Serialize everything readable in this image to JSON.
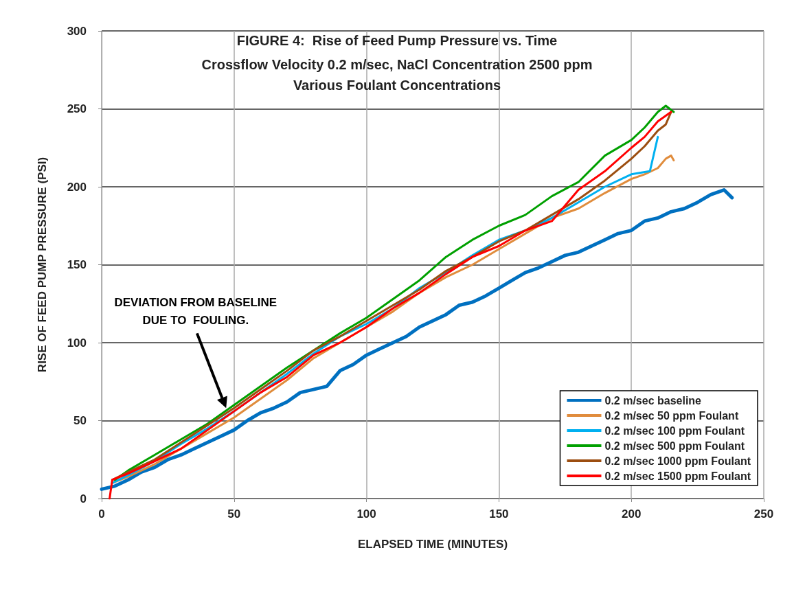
{
  "chart_data": {
    "type": "line",
    "title": "FIGURE 4:  Rise of Feed Pump Pressure vs. Time",
    "subtitle": "Crossflow Velocity 0.2 m/sec, NaCl Concentration 2500 ppm\nVarious Foulant Concentrations",
    "xlabel": "ELAPSED TIME (MINUTES)",
    "ylabel": "RISE OF FEED PUMP PRESSURE (PSI)",
    "xlim": [
      0,
      250
    ],
    "xticks": [
      0,
      50,
      100,
      150,
      200,
      250
    ],
    "ylim": [
      0,
      300
    ],
    "yticks": [
      0,
      50,
      100,
      150,
      200,
      250,
      300
    ],
    "grid": true,
    "legend": "bottom right",
    "marker": "none",
    "line_style": "solid",
    "annotations": [
      "DEVIATION FROM BASELINE\nDUE TO  FOULING."
    ],
    "series": [
      {
        "name": "0.2 m/sec baseline",
        "color": "#0070c0",
        "x": [
          0,
          5,
          10,
          15,
          20,
          25,
          30,
          35,
          40,
          45,
          50,
          55,
          60,
          65,
          70,
          75,
          80,
          85,
          90,
          95,
          100,
          105,
          110,
          115,
          120,
          125,
          130,
          135,
          140,
          145,
          150,
          155,
          160,
          165,
          170,
          175,
          180,
          185,
          190,
          195,
          200,
          205,
          210,
          215,
          220,
          225,
          230,
          235,
          238
        ],
        "values": [
          6,
          8,
          12,
          17,
          20,
          25,
          28,
          32,
          36,
          40,
          44,
          50,
          55,
          58,
          62,
          68,
          70,
          72,
          82,
          86,
          92,
          96,
          100,
          104,
          110,
          114,
          118,
          124,
          126,
          130,
          135,
          140,
          145,
          148,
          152,
          156,
          158,
          162,
          166,
          170,
          172,
          178,
          180,
          184,
          186,
          190,
          195,
          198,
          193
        ]
      },
      {
        "name": "0.2 m/sec 50 ppm Foulant",
        "color": "#e08c3c",
        "x": [
          4,
          10,
          20,
          30,
          40,
          50,
          60,
          70,
          80,
          90,
          100,
          110,
          120,
          130,
          140,
          150,
          160,
          170,
          180,
          190,
          200,
          205,
          210,
          213,
          215,
          216
        ],
        "values": [
          10,
          14,
          22,
          32,
          42,
          52,
          64,
          76,
          90,
          100,
          110,
          120,
          132,
          142,
          150,
          160,
          170,
          180,
          186,
          196,
          205,
          208,
          212,
          218,
          220,
          217
        ]
      },
      {
        "name": "0.2 m/sec 100 ppm Foulant",
        "color": "#00b0f0",
        "x": [
          4,
          10,
          20,
          30,
          40,
          50,
          60,
          70,
          80,
          90,
          100,
          110,
          120,
          130,
          140,
          150,
          160,
          170,
          180,
          190,
          200,
          207,
          210
        ],
        "values": [
          10,
          15,
          24,
          35,
          45,
          56,
          68,
          80,
          93,
          104,
          112,
          122,
          135,
          145,
          156,
          166,
          172,
          180,
          190,
          200,
          208,
          210,
          232
        ]
      },
      {
        "name": "0.2 m/sec 500 ppm Foulant",
        "color": "#00a000",
        "x": [
          5,
          10,
          20,
          30,
          40,
          50,
          60,
          70,
          80,
          90,
          100,
          110,
          120,
          130,
          140,
          150,
          160,
          170,
          180,
          190,
          200,
          205,
          210,
          213,
          216
        ],
        "values": [
          12,
          18,
          28,
          38,
          48,
          60,
          72,
          84,
          95,
          106,
          116,
          128,
          140,
          155,
          166,
          175,
          182,
          194,
          203,
          220,
          230,
          238,
          248,
          252,
          248
        ]
      },
      {
        "name": "0.2 m/sec 1000 ppm Foulant",
        "color": "#9c4e10",
        "x": [
          4,
          10,
          20,
          30,
          40,
          50,
          60,
          70,
          80,
          90,
          100,
          110,
          120,
          130,
          140,
          150,
          160,
          170,
          180,
          190,
          200,
          205,
          210,
          213,
          215
        ],
        "values": [
          12,
          17,
          25,
          36,
          47,
          58,
          70,
          82,
          95,
          104,
          114,
          124,
          134,
          146,
          155,
          165,
          172,
          182,
          192,
          204,
          218,
          226,
          236,
          240,
          248
        ]
      },
      {
        "name": "0.2 m/sec 1500 ppm Foulant",
        "color": "#ff0000",
        "x": [
          3,
          4,
          10,
          20,
          30,
          40,
          50,
          60,
          70,
          80,
          90,
          100,
          110,
          120,
          130,
          140,
          150,
          160,
          170,
          180,
          190,
          200,
          205,
          210,
          215
        ],
        "values": [
          0,
          12,
          16,
          24,
          32,
          44,
          56,
          68,
          78,
          92,
          100,
          110,
          122,
          132,
          144,
          155,
          162,
          172,
          178,
          198,
          210,
          225,
          232,
          242,
          248
        ]
      }
    ]
  }
}
